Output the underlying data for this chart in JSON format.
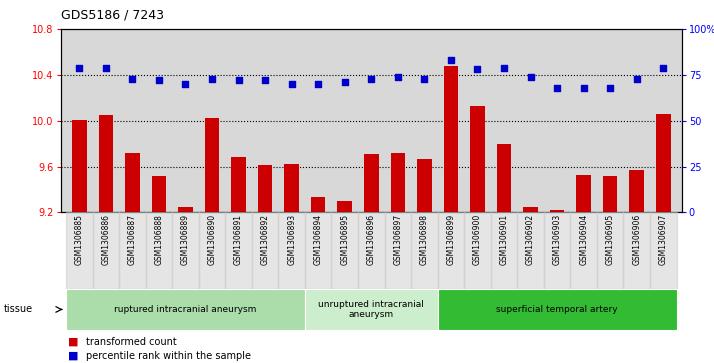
{
  "title": "GDS5186 / 7243",
  "samples": [
    "GSM1306885",
    "GSM1306886",
    "GSM1306887",
    "GSM1306888",
    "GSM1306889",
    "GSM1306890",
    "GSM1306891",
    "GSM1306892",
    "GSM1306893",
    "GSM1306894",
    "GSM1306895",
    "GSM1306896",
    "GSM1306897",
    "GSM1306898",
    "GSM1306899",
    "GSM1306900",
    "GSM1306901",
    "GSM1306902",
    "GSM1306903",
    "GSM1306904",
    "GSM1306905",
    "GSM1306906",
    "GSM1306907"
  ],
  "bar_values": [
    10.01,
    10.05,
    9.72,
    9.52,
    9.25,
    10.02,
    9.68,
    9.61,
    9.62,
    9.33,
    9.3,
    9.71,
    9.72,
    9.67,
    10.48,
    10.13,
    9.8,
    9.25,
    9.22,
    9.53,
    9.52,
    9.57,
    10.06
  ],
  "percentile_values": [
    79,
    79,
    73,
    72,
    70,
    73,
    72,
    72,
    70,
    70,
    71,
    73,
    74,
    73,
    83,
    78,
    79,
    74,
    68,
    68,
    68,
    73,
    79
  ],
  "ylim_left": [
    9.2,
    10.8
  ],
  "ylim_right": [
    0,
    100
  ],
  "yticks_left": [
    9.2,
    9.6,
    10.0,
    10.4,
    10.8
  ],
  "yticks_right": [
    0,
    25,
    50,
    75,
    100
  ],
  "ytick_labels_right": [
    "0",
    "25",
    "50",
    "75",
    "100%"
  ],
  "bar_color": "#cc0000",
  "dot_color": "#0000cc",
  "plot_bg_color": "#d8d8d8",
  "tissue_groups": [
    {
      "label": "ruptured intracranial aneurysm",
      "start": 0,
      "end": 8,
      "color": "#aaddaa"
    },
    {
      "label": "unruptured intracranial\naneurysm",
      "start": 9,
      "end": 13,
      "color": "#cceecc"
    },
    {
      "label": "superficial temporal artery",
      "start": 14,
      "end": 22,
      "color": "#33bb33"
    }
  ],
  "legend_bar_label": "transformed count",
  "legend_dot_label": "percentile rank within the sample",
  "tissue_label": "tissue"
}
